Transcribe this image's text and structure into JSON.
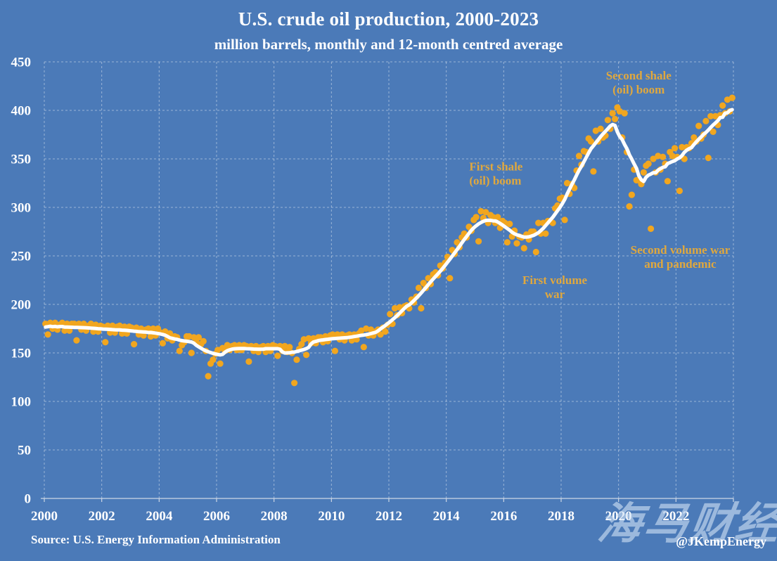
{
  "header": {
    "title": "U.S. crude oil production, 2000-2023",
    "subtitle": "million barrels, monthly and 12-month centred average"
  },
  "footer": {
    "source": "Source: U.S. Energy Information Administration",
    "handle": "@JKempEnergy"
  },
  "watermark": {
    "text": "海马财经"
  },
  "colors": {
    "background": "#4B7AB8",
    "dots": "#F1A61F",
    "line": "#FFFFFF",
    "grid": "#DCE4EF",
    "axis": "#CDD7E5",
    "annotation": "#E0A83E",
    "text": "#FFFFFF"
  },
  "chart_data": {
    "type": "scatter",
    "title": "U.S. crude oil production, 2000-2023",
    "subtitle": "million barrels, monthly and 12-month centred average",
    "xlabel": "",
    "ylabel": "",
    "x_range": [
      2000,
      2024
    ],
    "ylim": [
      0,
      450
    ],
    "x_ticks": [
      2000,
      2002,
      2004,
      2006,
      2008,
      2010,
      2012,
      2014,
      2016,
      2018,
      2020,
      2022
    ],
    "y_ticks": [
      0,
      50,
      100,
      150,
      200,
      250,
      300,
      350,
      400,
      450
    ],
    "grid": true,
    "legend": "none",
    "series": [
      {
        "name": "monthly production",
        "type": "scatter",
        "units": "million barrels per month",
        "start_month": "2000-01",
        "monthly_by_year": {
          "2000": [
            180,
            169,
            181,
            175,
            181,
            174,
            179,
            181,
            173,
            180,
            173,
            180
          ],
          "2001": [
            180,
            163,
            180,
            174,
            180,
            173,
            178,
            180,
            172,
            179,
            172,
            178
          ],
          "2002": [
            177,
            161,
            178,
            171,
            178,
            171,
            177,
            178,
            170,
            177,
            170,
            177
          ],
          "2003": [
            176,
            159,
            176,
            169,
            175,
            168,
            174,
            175,
            167,
            175,
            168,
            175
          ],
          "2004": [
            171,
            160,
            172,
            165,
            170,
            163,
            167,
            166,
            152,
            158,
            161,
            167
          ],
          "2005": [
            167,
            150,
            166,
            161,
            166,
            159,
            162,
            152,
            126,
            139,
            143,
            149
          ],
          "2006": [
            153,
            139,
            155,
            152,
            158,
            153,
            157,
            158,
            153,
            158,
            153,
            158
          ],
          "2007": [
            157,
            141,
            157,
            152,
            157,
            151,
            156,
            157,
            151,
            157,
            152,
            158
          ],
          "2008": [
            157,
            147,
            157,
            152,
            157,
            151,
            156,
            150,
            119,
            143,
            154,
            159
          ],
          "2009": [
            164,
            148,
            165,
            160,
            165,
            160,
            166,
            166,
            161,
            167,
            162,
            168
          ],
          "2010": [
            169,
            152,
            169,
            164,
            169,
            163,
            168,
            169,
            163,
            169,
            164,
            170
          ],
          "2011": [
            173,
            156,
            175,
            168,
            174,
            168,
            172,
            174,
            169,
            176,
            172,
            179
          ],
          "2012": [
            190,
            180,
            196,
            189,
            197,
            191,
            198,
            199,
            196,
            205,
            202,
            208
          ],
          "2013": [
            217,
            196,
            222,
            217,
            227,
            221,
            231,
            233,
            230,
            240,
            237,
            243
          ],
          "2014": [
            249,
            227,
            256,
            252,
            264,
            259,
            269,
            273,
            269,
            280,
            276,
            287
          ],
          "2015": [
            290,
            265,
            296,
            289,
            295,
            284,
            292,
            290,
            284,
            290,
            279,
            286
          ],
          "2016": [
            284,
            264,
            283,
            270,
            276,
            263,
            270,
            269,
            258,
            272,
            267,
            275
          ],
          "2017": [
            275,
            254,
            284,
            273,
            284,
            273,
            286,
            286,
            284,
            299,
            302,
            309
          ],
          "2018": [
            310,
            287,
            325,
            314,
            324,
            320,
            338,
            353,
            344,
            358,
            357,
            371
          ],
          "2019": [
            368,
            337,
            379,
            368,
            381,
            372,
            374,
            390,
            381,
            397,
            391,
            403
          ],
          "2020": [
            399,
            372,
            397,
            357,
            301,
            313,
            339,
            328,
            328,
            324,
            336,
            343
          ],
          "2021": [
            345,
            278,
            350,
            336,
            353,
            339,
            352,
            345,
            327,
            357,
            353,
            361
          ],
          "2022": [
            352,
            317,
            362,
            350,
            362,
            361,
            366,
            372,
            368,
            384,
            371,
            375
          ],
          "2023": [
            389,
            351,
            394,
            378,
            394,
            385,
            395,
            405,
            397,
            411,
            399,
            413
          ]
        }
      },
      {
        "name": "12-month centred average",
        "type": "line",
        "derived_from": "monthly production",
        "method": "12-month centred mean"
      }
    ],
    "annotations": [
      {
        "id": "second-shale-boom",
        "lines": [
          "Second shale",
          "(oil) boom"
        ],
        "x": 2020.7,
        "y": 436,
        "anchor": "middle"
      },
      {
        "id": "first-shale-boom",
        "lines": [
          "First shale",
          "(oil) boom"
        ],
        "x": 2014.8,
        "y": 342,
        "anchor": "start"
      },
      {
        "id": "first-volume-war",
        "lines": [
          "First volume",
          "war"
        ],
        "x": 2017.78,
        "y": 225,
        "anchor": "middle"
      },
      {
        "id": "second-volume-war",
        "lines": [
          "Second volume war",
          "and pandemic"
        ],
        "x": 2022.15,
        "y": 256,
        "anchor": "middle"
      }
    ]
  }
}
